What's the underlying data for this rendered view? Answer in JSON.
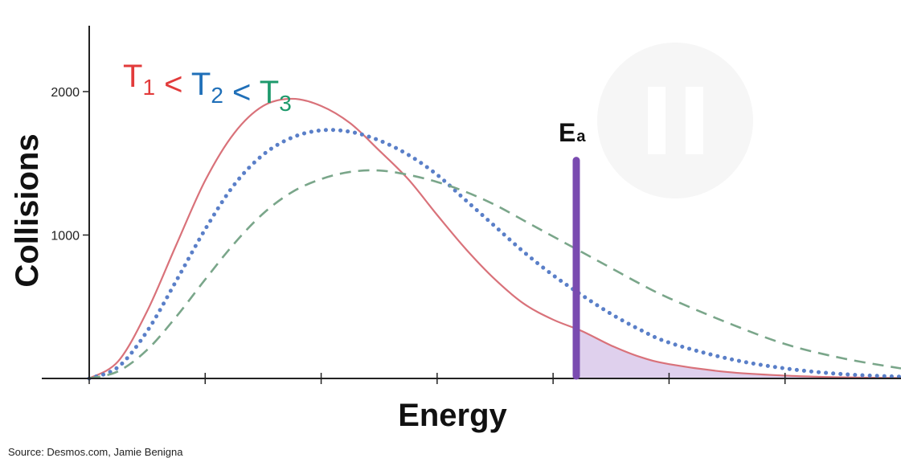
{
  "chart_data": {
    "type": "line",
    "title": "",
    "xlabel": "Energy",
    "ylabel": "Collisions",
    "xlim": [
      0,
      7
    ],
    "ylim": [
      0,
      2400
    ],
    "x_ticks": [
      0,
      1,
      2,
      3,
      4,
      5,
      6
    ],
    "y_ticks": [
      1000,
      2000
    ],
    "y_tick_labels": [
      "1000",
      "2000"
    ],
    "legend": {
      "parts": [
        {
          "text": "T",
          "sub": "1",
          "color": "#e23b3b"
        },
        {
          "text": " < ",
          "sub": "",
          "color": "#e23b3b"
        },
        {
          "text": "T",
          "sub": "2",
          "color": "#1f6fb8"
        },
        {
          "text": " < ",
          "sub": "",
          "color": "#1f6fb8"
        },
        {
          "text": "T",
          "sub": "3",
          "color": "#1e9a6c"
        }
      ]
    },
    "activation_energy": {
      "label": "E",
      "sub": "a",
      "x": 4.2,
      "top": 1520,
      "color": "#7a4bb0",
      "shade": "#d9c8ea"
    },
    "shaded_series": "T1",
    "series": [
      {
        "name": "T1",
        "style": "solid",
        "color": "#d9727a",
        "x": [
          0,
          0.25,
          0.5,
          0.75,
          1.0,
          1.25,
          1.5,
          1.75,
          2.0,
          2.25,
          2.5,
          2.75,
          3.0,
          3.25,
          3.5,
          3.75,
          4.0,
          4.25,
          4.5,
          4.75,
          5.0,
          5.5,
          6.0,
          6.5,
          7.0
        ],
        "y": [
          0,
          120,
          470,
          930,
          1380,
          1710,
          1900,
          1950,
          1900,
          1780,
          1590,
          1390,
          1140,
          900,
          690,
          520,
          410,
          330,
          230,
          150,
          100,
          45,
          20,
          8,
          3
        ]
      },
      {
        "name": "T2",
        "style": "dotted",
        "color": "#5a7fc8",
        "x": [
          0,
          0.25,
          0.5,
          0.75,
          1.0,
          1.25,
          1.5,
          1.75,
          2.0,
          2.25,
          2.5,
          2.75,
          3.0,
          3.25,
          3.5,
          3.75,
          4.0,
          4.25,
          4.5,
          4.75,
          5.0,
          5.5,
          6.0,
          6.5,
          7.0
        ],
        "y": [
          0,
          80,
          330,
          680,
          1040,
          1350,
          1560,
          1680,
          1730,
          1720,
          1660,
          1560,
          1420,
          1240,
          1060,
          880,
          720,
          580,
          450,
          340,
          250,
          140,
          70,
          30,
          12
        ]
      },
      {
        "name": "T3",
        "style": "dashed",
        "color": "#7aa68a",
        "x": [
          0,
          0.25,
          0.5,
          0.75,
          1.0,
          1.25,
          1.5,
          1.75,
          2.0,
          2.25,
          2.5,
          2.75,
          3.0,
          3.25,
          3.5,
          3.75,
          4.0,
          4.25,
          4.5,
          4.75,
          5.0,
          5.5,
          6.0,
          6.5,
          7.0
        ],
        "y": [
          0,
          50,
          200,
          430,
          690,
          940,
          1150,
          1300,
          1390,
          1440,
          1450,
          1420,
          1370,
          1300,
          1210,
          1100,
          990,
          880,
          770,
          660,
          560,
          390,
          240,
          140,
          70
        ]
      }
    ]
  },
  "source": "Source:  Desmos.com, Jamie Benigna"
}
